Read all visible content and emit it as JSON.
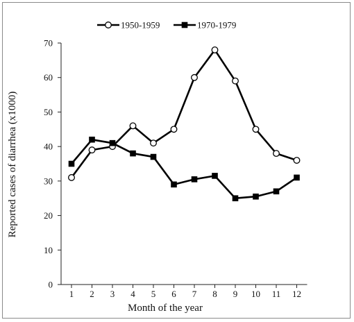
{
  "chart_data": {
    "type": "line",
    "xlabel": "Month of the year",
    "ylabel": "Reported cases of diarrhea (x1000)",
    "categories": [
      "1",
      "2",
      "3",
      "4",
      "5",
      "6",
      "7",
      "8",
      "9",
      "10",
      "11",
      "12"
    ],
    "ylim": [
      0,
      70
    ],
    "yticks": [
      "0",
      "10",
      "20",
      "30",
      "40",
      "50",
      "60",
      "70"
    ],
    "grid": false,
    "legend_position": "top",
    "series": [
      {
        "name": "1950-1959",
        "marker": "open-circle",
        "color": "#000000",
        "values": [
          31,
          39,
          40,
          46,
          41,
          45,
          60,
          68,
          59,
          45,
          38,
          36
        ]
      },
      {
        "name": "1970-1979",
        "marker": "filled-square",
        "color": "#000000",
        "values": [
          35,
          42,
          41,
          38,
          37,
          29,
          30.5,
          31.5,
          25,
          25.5,
          27,
          31
        ]
      }
    ]
  }
}
